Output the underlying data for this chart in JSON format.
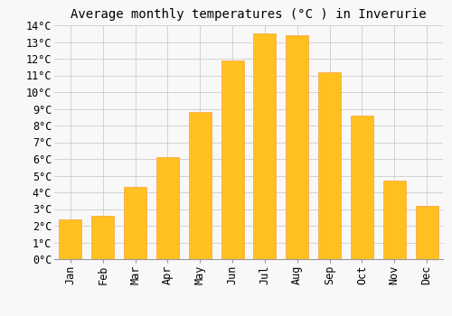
{
  "title": "Average monthly temperatures (°C ) in Inverurie",
  "months": [
    "Jan",
    "Feb",
    "Mar",
    "Apr",
    "May",
    "Jun",
    "Jul",
    "Aug",
    "Sep",
    "Oct",
    "Nov",
    "Dec"
  ],
  "values": [
    2.4,
    2.6,
    4.3,
    6.1,
    8.8,
    11.9,
    13.5,
    13.4,
    11.2,
    8.6,
    4.7,
    3.2
  ],
  "bar_color": "#FFC020",
  "bar_edge_color": "#FFA040",
  "background_color": "#F8F8F8",
  "grid_color": "#CCCCCC",
  "ylim": [
    0,
    14
  ],
  "yticks": [
    0,
    1,
    2,
    3,
    4,
    5,
    6,
    7,
    8,
    9,
    10,
    11,
    12,
    13,
    14
  ],
  "title_fontsize": 10,
  "tick_fontsize": 8.5,
  "font_family": "monospace",
  "bar_width": 0.7
}
